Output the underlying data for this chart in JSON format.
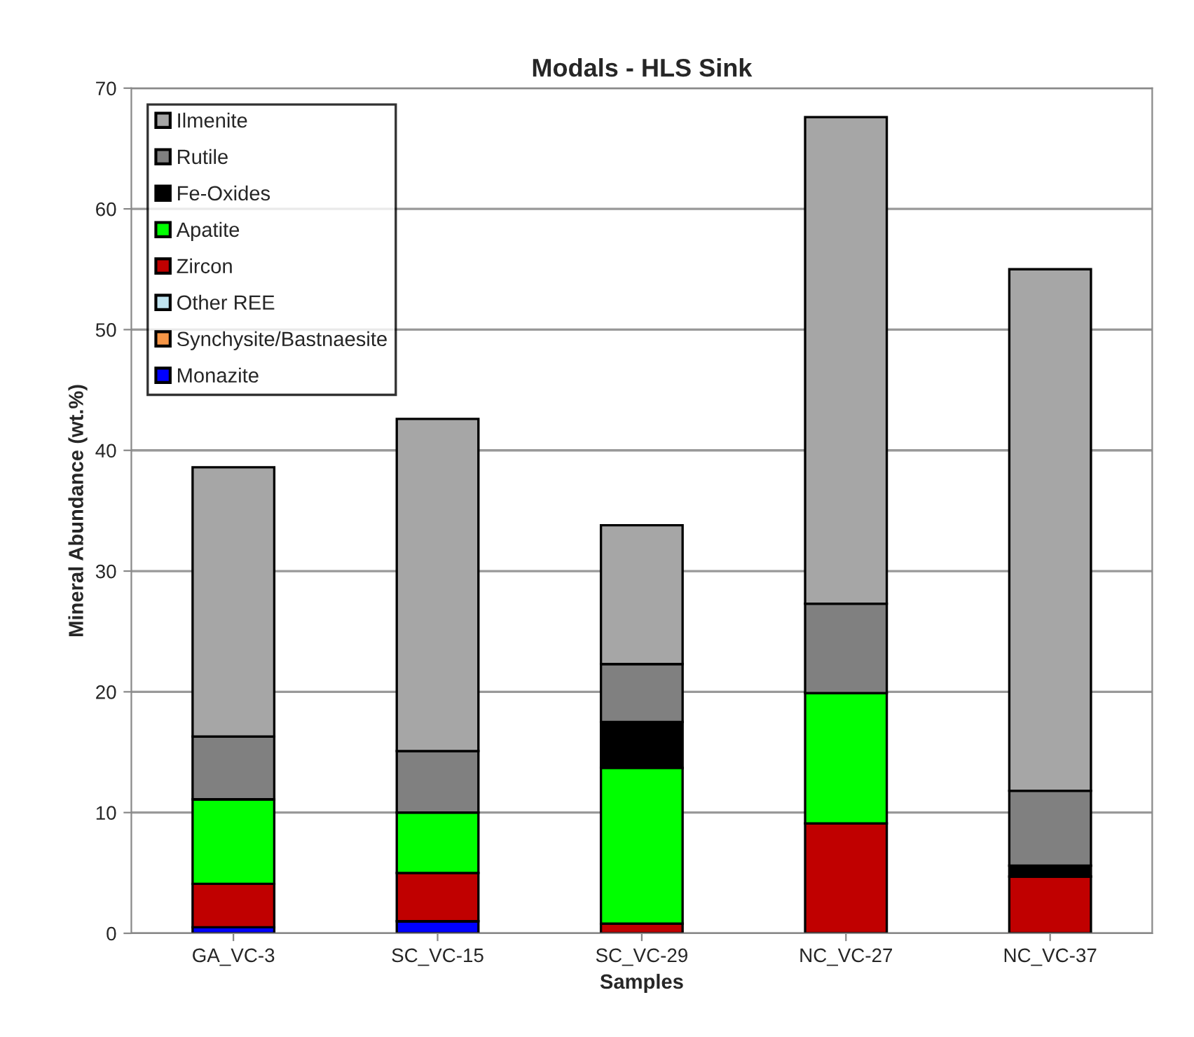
{
  "chart_data": {
    "type": "bar",
    "title": "Modals - HLS Sink",
    "xlabel": "Samples",
    "ylabel": "Mineral Abundance (wt.%)",
    "categories": [
      "GA_VC-3",
      "SC_VC-15",
      "SC_VC-29",
      "NC_VC-27",
      "NC_VC-37"
    ],
    "stacked": true,
    "series": [
      {
        "name": "Monazite",
        "color": "#0000ff",
        "values": [
          0.5,
          1.0,
          0,
          0,
          null
        ]
      },
      {
        "name": "Synchysite/Bastnaesite",
        "color": "#f79646",
        "values": [
          0,
          0,
          0,
          0,
          0
        ]
      },
      {
        "name": "Other REE",
        "color": "#c0e4f0",
        "values": [
          0,
          0,
          0,
          0,
          0
        ]
      },
      {
        "name": "Zircon",
        "color": "#c00000",
        "values": [
          3.6,
          4.0,
          0.8,
          9.1,
          4.7
        ]
      },
      {
        "name": "Apatite",
        "color": "#00ff00",
        "values": [
          7.0,
          5.0,
          12.9,
          10.8,
          0
        ]
      },
      {
        "name": "Fe-Oxides",
        "color": "#000000",
        "values": [
          null,
          0,
          3.8,
          0,
          0.9
        ]
      },
      {
        "name": "Rutile",
        "color": "#808080",
        "values": [
          5.2,
          5.1,
          4.8,
          7.4,
          6.2
        ]
      },
      {
        "name": "Ilmenite",
        "color": "#a6a6a6",
        "values": [
          22.3,
          27.5,
          11.5,
          40.3,
          43.2
        ]
      }
    ],
    "ylim": [
      0,
      70
    ],
    "yticks": [
      0,
      10,
      20,
      30,
      40,
      50,
      60,
      70
    ],
    "grid": "y",
    "legend": "top left"
  }
}
